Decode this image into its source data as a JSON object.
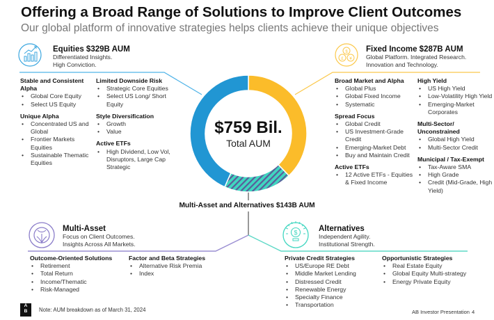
{
  "header": {
    "title": "Offering a Broad Range of Solutions to Improve Client Outcomes",
    "subtitle": "Our global platform of innovative strategies helps clients achieve their unique objectives"
  },
  "colors": {
    "equities": "#2196d3",
    "fixed_income": "#fbbc2a",
    "multi_asset": "#8878c8",
    "alternatives": "#40d6c0"
  },
  "center": {
    "value": "$759 Bil.",
    "label": "Total AUM"
  },
  "ring": {
    "segments": [
      {
        "name": "Equities",
        "aum_b": 329,
        "color": "#2196d3"
      },
      {
        "name": "Fixed Income",
        "aum_b": 287,
        "color": "#fbbc2a"
      },
      {
        "name": "Multi-Asset and Alternatives",
        "aum_b": 143,
        "color": "#40d6c0"
      }
    ]
  },
  "equities": {
    "icon": "growth-chart-icon",
    "title": "Equities $329B AUM",
    "tagline": [
      "Differentiated Insights.",
      "High Conviction."
    ],
    "col1": [
      {
        "heading": "Stable and Consistent Alpha",
        "items": [
          "Global Core Equity",
          "Select US Equity"
        ]
      },
      {
        "heading": "Unique Alpha",
        "items": [
          "Concentrated US and Global",
          "Frontier Markets Equities",
          "Sustainable Thematic Equities"
        ]
      }
    ],
    "col2": [
      {
        "heading": "Limited Downside Risk",
        "items": [
          "Strategic Core Equities",
          "Select US Long/ Short Equity"
        ]
      },
      {
        "heading": "Style Diversification",
        "items": [
          "Growth",
          "Value"
        ]
      },
      {
        "heading": "Active ETFs",
        "items": [
          "High Dividend, Low Vol, Disruptors, Large Cap Strategic"
        ]
      }
    ]
  },
  "fixed_income": {
    "icon": "currency-coins-icon",
    "title": "Fixed Income $287B AUM",
    "tagline": [
      "Global Platform. Integrated Research.",
      "Innovation and Technology."
    ],
    "col1": [
      {
        "heading": "Broad Market and Alpha",
        "items": [
          "Global Plus",
          "Global Fixed Income",
          "Systematic"
        ]
      },
      {
        "heading": "Spread Focus",
        "items": [
          "Global Credit",
          "US Investment-Grade Credit",
          "Emerging-Market Debt",
          "Buy and Maintain Credit"
        ]
      },
      {
        "heading": "Active ETFs",
        "items": [
          "12 Active ETFs - Equities & Fixed Income"
        ]
      }
    ],
    "col2": [
      {
        "heading": "High Yield",
        "items": [
          "US High Yield",
          "Low-Volatility High Yield",
          "Emerging-Market Corporates"
        ]
      },
      {
        "heading": "Multi-Sector/ Unconstrained",
        "items": [
          "Global High Yield",
          "Multi-Sector Credit"
        ]
      },
      {
        "heading": "Municipal / Tax-Exempt",
        "items": [
          "Tax-Aware SMA",
          "High Grade",
          "Credit (Mid-Grade, High Yield)"
        ]
      }
    ]
  },
  "ma_alt_label": "Multi-Asset and Alternatives $143B AUM",
  "multi_asset": {
    "icon": "globe-leaf-icon",
    "title": "Multi-Asset",
    "tagline": [
      "Focus on Client Outcomes.",
      "Insights Across All Markets."
    ],
    "col1": [
      {
        "heading": "Outcome-Oriented Solutions",
        "items": [
          "Retirement",
          "Total Return",
          "Income/Thematic",
          "Risk-Managed"
        ]
      }
    ],
    "col2": [
      {
        "heading": "Factor and Beta Strategies",
        "items": [
          "Alternative Risk Premia",
          "Index"
        ]
      }
    ]
  },
  "alternatives": {
    "icon": "lightbulb-dollar-icon",
    "title": "Alternatives",
    "tagline": [
      "Independent Agility.",
      "Institutional Strength."
    ],
    "col1": [
      {
        "heading": "Private Credit Strategies",
        "items": [
          "US/Europe RE Debt",
          "Middle Market Lending",
          "Distressed Credit",
          "Renewable Energy",
          "Specialty Finance",
          "Transportation"
        ]
      }
    ],
    "col2": [
      {
        "heading": "Opportunistic Strategies",
        "items": [
          "Real Estate Equity",
          "Global Equity Multi-strategy",
          "Energy Private Equity"
        ]
      }
    ]
  },
  "footer": {
    "logo_top": "A",
    "logo_bottom": "B",
    "note": "Note: AUM breakdown as of March 31, 2024",
    "presentation": "AB Investor Presentation",
    "page": "4"
  }
}
